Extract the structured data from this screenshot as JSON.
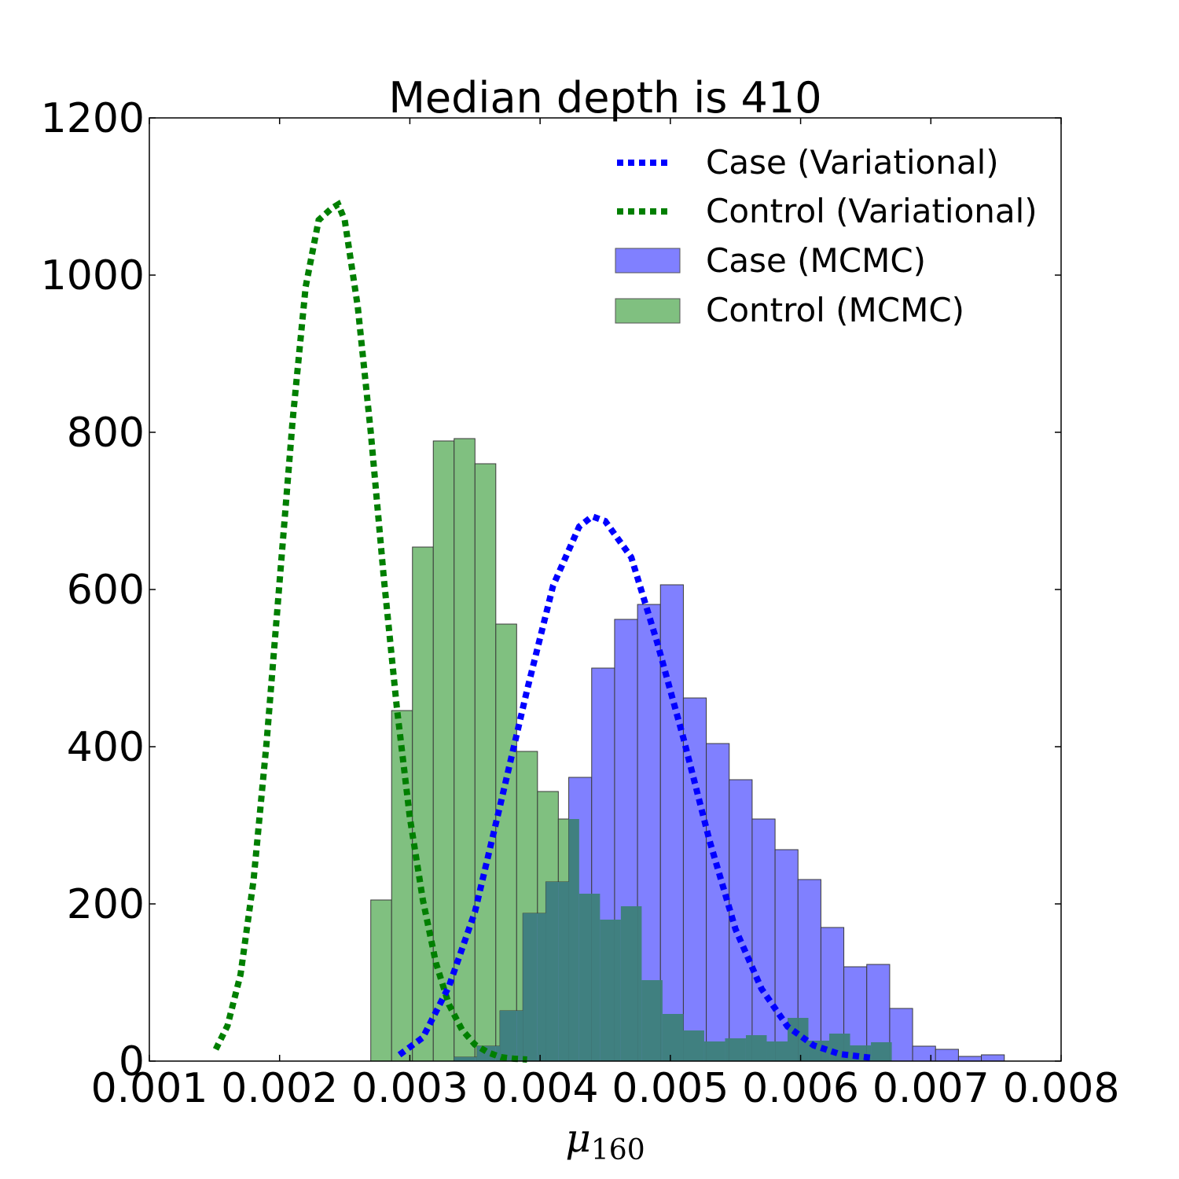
{
  "chart_data": {
    "type": "bar",
    "title": "Median depth is 410",
    "xlabel": "μ",
    "xlabel_subscript": "160",
    "ylabel": "",
    "xlim": [
      0.001,
      0.008
    ],
    "ylim": [
      0,
      1200
    ],
    "xticks": [
      "0.001",
      "0.002",
      "0.003",
      "0.004",
      "0.005",
      "0.006",
      "0.007",
      "0.008"
    ],
    "yticks": [
      "0",
      "200",
      "400",
      "600",
      "800",
      "1000",
      "1200"
    ],
    "grid": false,
    "legend_position": "top-right",
    "legend": [
      "Case (Variational)",
      "Control (Variational)",
      "Case (MCMC)",
      "Control (MCMC)"
    ],
    "colors": {
      "case_line": "#0000ff",
      "control_line": "#007f00",
      "case_bar": "#8080ff",
      "control_bar": "#80c080",
      "overlap_bar": "#408080",
      "bar_edge": "#3a3a3a"
    },
    "histograms": [
      {
        "name": "Control (MCMC)",
        "bin_width": 0.00016,
        "x_left": [
          0.0027,
          0.00286,
          0.00302,
          0.00318,
          0.00334,
          0.0035,
          0.00366,
          0.00382,
          0.00398,
          0.00414,
          0.0043,
          0.00446,
          0.00462,
          0.00478,
          0.00494,
          0.0051,
          0.00526,
          0.00542,
          0.00558,
          0.00574,
          0.0059,
          0.00606,
          0.00622,
          0.00638,
          0.00654
        ],
        "values": [
          205,
          446,
          654,
          789,
          792,
          760,
          556,
          394,
          343,
          308,
          213,
          180,
          197,
          103,
          60,
          39,
          25,
          29,
          33,
          25,
          55,
          26,
          35,
          20,
          24
        ]
      },
      {
        "name": "Case (MCMC)",
        "bin_width": 0.000176,
        "x_left": [
          0.00334,
          0.003516,
          0.003692,
          0.003868,
          0.004044,
          0.00422,
          0.004396,
          0.004572,
          0.004748,
          0.004924,
          0.0051,
          0.005276,
          0.005452,
          0.005628,
          0.005804,
          0.00598,
          0.006156,
          0.006332,
          0.006508,
          0.006684,
          0.00686,
          0.007036,
          0.007212,
          0.007388
        ],
        "values": [
          5,
          19,
          64,
          188,
          228,
          361,
          500,
          562,
          581,
          606,
          462,
          404,
          358,
          308,
          269,
          231,
          170,
          120,
          123,
          67,
          19,
          15,
          6,
          8
        ]
      }
    ],
    "series": [
      {
        "name": "Case (Variational)",
        "x": [
          0.00292,
          0.0031,
          0.0033,
          0.0035,
          0.0037,
          0.0039,
          0.0041,
          0.0043,
          0.0044,
          0.0045,
          0.0047,
          0.0049,
          0.0051,
          0.0053,
          0.0055,
          0.0057,
          0.0059,
          0.0061,
          0.0063,
          0.00655
        ],
        "values": [
          8,
          30,
          95,
          190,
          330,
          472,
          605,
          680,
          693,
          687,
          641,
          532,
          411,
          281,
          168,
          92,
          44,
          20,
          9,
          4
        ]
      },
      {
        "name": "Control (Variational)",
        "x": [
          0.00151,
          0.0016,
          0.0017,
          0.0018,
          0.0019,
          0.002,
          0.0021,
          0.0022,
          0.0023,
          0.0024,
          0.00245,
          0.0025,
          0.0026,
          0.0027,
          0.0028,
          0.0029,
          0.003,
          0.0031,
          0.0032,
          0.0033,
          0.0034,
          0.0035,
          0.0036,
          0.0037,
          0.0038,
          0.0039
        ],
        "values": [
          15,
          45,
          110,
          230,
          405,
          610,
          815,
          985,
          1070,
          1085,
          1090,
          1070,
          960,
          800,
          615,
          450,
          310,
          205,
          125,
          72,
          40,
          21,
          11,
          5,
          3,
          2
        ]
      }
    ]
  }
}
